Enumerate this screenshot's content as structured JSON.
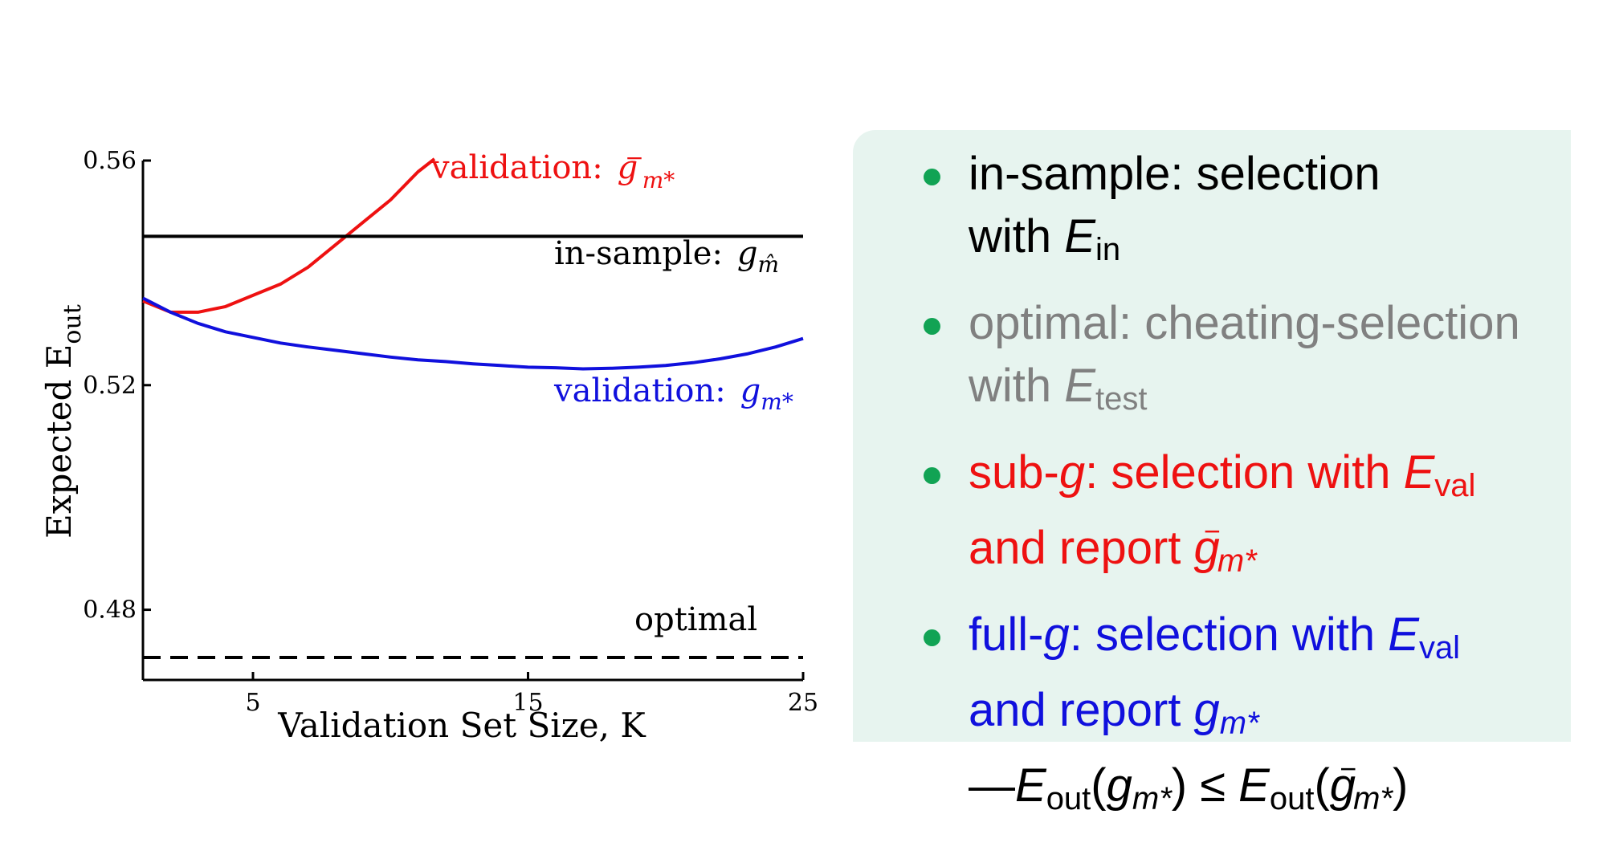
{
  "chart_data": {
    "type": "line",
    "xlabel": "Validation Set Size, K",
    "ylabel": "Expected E_out",
    "xlim": [
      1,
      25
    ],
    "ylim": [
      0.465,
      0.56
    ],
    "x_ticks": [
      "5",
      "15",
      "25"
    ],
    "y_ticks": [
      "0.56",
      "0.52",
      "0.48"
    ],
    "colors": {
      "red": "#ee1111",
      "blue": "#1010dd",
      "black": "#000000"
    },
    "series": [
      {
        "name": "validation: g⁻m*",
        "color": "#ee1111",
        "style": "solid",
        "x": [
          1,
          2,
          3,
          4,
          5,
          6,
          7,
          8,
          9,
          10,
          11,
          11.6
        ],
        "y": [
          0.535,
          0.533,
          0.533,
          0.534,
          0.536,
          0.538,
          0.541,
          0.545,
          0.549,
          0.553,
          0.558,
          0.561
        ]
      },
      {
        "name": "validation: gm*",
        "color": "#1010dd",
        "style": "solid",
        "x": [
          1,
          2,
          3,
          4,
          5,
          6,
          7,
          8,
          9,
          10,
          11,
          12,
          13,
          14,
          15,
          16,
          17,
          18,
          19,
          20,
          21,
          22,
          23,
          24,
          25
        ],
        "y": [
          0.5355,
          0.533,
          0.531,
          0.5295,
          0.5285,
          0.5275,
          0.5268,
          0.5262,
          0.5256,
          0.525,
          0.5245,
          0.5242,
          0.5238,
          0.5235,
          0.5232,
          0.5231,
          0.5229,
          0.523,
          0.5232,
          0.5235,
          0.524,
          0.5247,
          0.5256,
          0.5268,
          0.5283
        ]
      },
      {
        "name": "in-sample: gm̂",
        "color": "#000000",
        "style": "solid",
        "x": [
          1,
          25
        ],
        "y": [
          0.5465,
          0.5465
        ]
      },
      {
        "name": "optimal",
        "color": "#000000",
        "style": "dashed",
        "x": [
          1,
          25
        ],
        "y": [
          0.4715,
          0.4715
        ]
      }
    ],
    "annotations": {
      "validation_red_prefix": "validation:",
      "validation_red_sym": "g",
      "validation_red_sup": "−",
      "validation_red_sub": "m*",
      "in_sample_prefix": "in-sample:",
      "in_sample_sym": "g",
      "in_sample_sub": "m̂",
      "validation_blue_prefix": "validation:",
      "validation_blue_sym": "g",
      "validation_blue_sub": "m*",
      "optimal": "optimal",
      "ylabel_main": "Expected E",
      "ylabel_sub": "out"
    }
  },
  "bullets": {
    "b1": {
      "line1": "in-sample: selection",
      "with": "with ",
      "E": "E",
      "sub": "in"
    },
    "b2": {
      "line1": "optimal: cheating-selection",
      "with": "with ",
      "E": "E",
      "sub": "test"
    },
    "b3": {
      "pre": "sub-",
      "g": "g",
      "mid": ": selection with ",
      "E": "E",
      "sub": "val",
      "line2": "and report ",
      "g2": "g",
      "sup2": "−",
      "sub2": "m*"
    },
    "b4": {
      "pre": "full-",
      "g": "g",
      "mid": ": selection with ",
      "E": "E",
      "sub": "val",
      "line2": "and report ",
      "g2": "g",
      "sub2": "m*",
      "dash": "—",
      "E3": "E",
      "sub3": "out",
      "open": "(",
      "g3": "g",
      "sub3b": "m*",
      "close": ")",
      "le": " ≤ ",
      "E4": "E",
      "sub4": "out",
      "open2": "(",
      "g4": "g",
      "sup4": "−",
      "sub4b": "m*",
      "close2": ")"
    }
  }
}
